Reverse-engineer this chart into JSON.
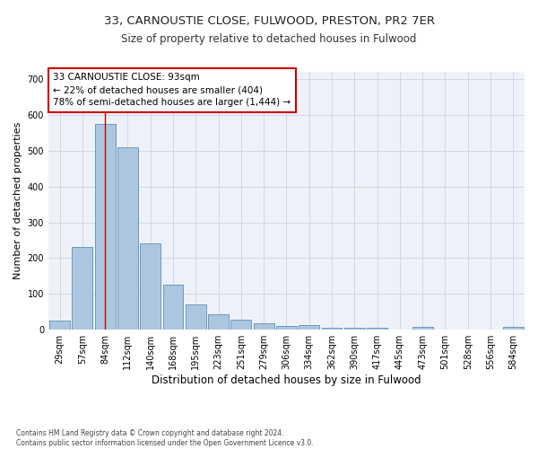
{
  "title_line1": "33, CARNOUSTIE CLOSE, FULWOOD, PRESTON, PR2 7ER",
  "title_line2": "Size of property relative to detached houses in Fulwood",
  "xlabel": "Distribution of detached houses by size in Fulwood",
  "ylabel": "Number of detached properties",
  "footnote": "Contains HM Land Registry data © Crown copyright and database right 2024.\nContains public sector information licensed under the Open Government Licence v3.0.",
  "bar_labels": [
    "29sqm",
    "57sqm",
    "84sqm",
    "112sqm",
    "140sqm",
    "168sqm",
    "195sqm",
    "223sqm",
    "251sqm",
    "279sqm",
    "306sqm",
    "334sqm",
    "362sqm",
    "390sqm",
    "417sqm",
    "445sqm",
    "473sqm",
    "501sqm",
    "528sqm",
    "556sqm",
    "584sqm"
  ],
  "bar_values": [
    25,
    230,
    575,
    510,
    240,
    125,
    70,
    42,
    27,
    17,
    10,
    12,
    5,
    6,
    5,
    0,
    7,
    0,
    0,
    0,
    7
  ],
  "bar_color": "#adc6e0",
  "bar_edge_color": "#5a8fc0",
  "red_line_x": 2,
  "annotation_title": "33 CARNOUSTIE CLOSE: 93sqm",
  "annotation_line2": "← 22% of detached houses are smaller (404)",
  "annotation_line3": "78% of semi-detached houses are larger (1,444) →",
  "annotation_box_color": "#ffffff",
  "annotation_border_color": "#cc0000",
  "ylim": [
    0,
    720
  ],
  "yticks": [
    0,
    100,
    200,
    300,
    400,
    500,
    600,
    700
  ],
  "grid_color": "#d0d8e8",
  "background_color": "#eef2f8",
  "fig_background": "#ffffff",
  "title1_fontsize": 9.5,
  "title2_fontsize": 8.5,
  "xlabel_fontsize": 8.5,
  "ylabel_fontsize": 8,
  "tick_fontsize": 7,
  "annotation_fontsize": 7.5,
  "footnote_fontsize": 5.5
}
